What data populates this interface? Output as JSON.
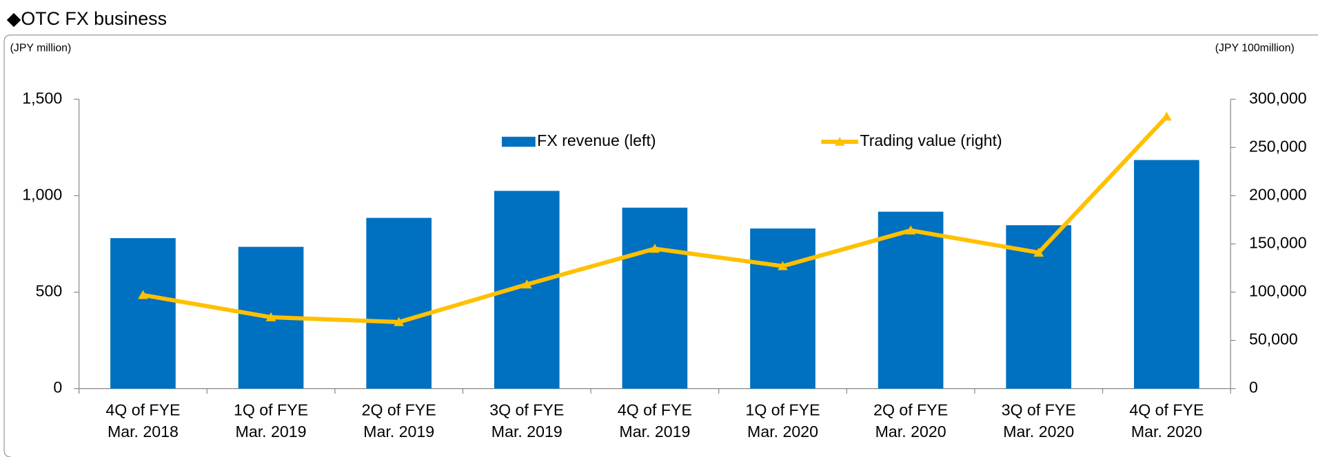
{
  "chart_data": {
    "type": "bar_line",
    "title": "◆OTC FX business",
    "ylabel": "(JPY million)",
    "y2label": "(JPY 100million)",
    "categories": [
      [
        "4Q of FYE",
        "Mar. 2018"
      ],
      [
        "1Q of FYE",
        "Mar. 2019"
      ],
      [
        "2Q of FYE",
        "Mar. 2019"
      ],
      [
        "3Q of FYE",
        "Mar. 2019"
      ],
      [
        "4Q of FYE",
        "Mar. 2019"
      ],
      [
        "1Q of FYE",
        "Mar. 2020"
      ],
      [
        "2Q of FYE",
        "Mar. 2020"
      ],
      [
        "3Q of FYE",
        "Mar. 2020"
      ],
      [
        "4Q of FYE",
        "Mar. 2020"
      ]
    ],
    "series": [
      {
        "name": "FX revenue (left)",
        "color": "#0070c0",
        "type": "bar",
        "values": [
          780,
          735,
          885,
          1025,
          938,
          830,
          917,
          847,
          1185
        ]
      },
      {
        "name": "Trading value (right)",
        "color": "#ffc000",
        "type": "line",
        "axis": "y2",
        "values": [
          97000,
          74000,
          69000,
          108000,
          145000,
          127000,
          164000,
          141000,
          282000
        ]
      }
    ],
    "ylim": [
      0,
      1500
    ],
    "yticks": [
      0,
      {
        "value": 500,
        "label": "500"
      },
      {
        "value": 1000,
        "label": "1,000"
      },
      {
        "value": 1500,
        "label": "1,500"
      }
    ],
    "y2lim": [
      0,
      300000
    ],
    "y2ticks": [
      0,
      {
        "value": 50000,
        "label": "50,000"
      },
      {
        "value": 100000,
        "label": "100,000"
      },
      {
        "value": 150000,
        "label": "150,000"
      },
      {
        "value": 200000,
        "label": "200,000"
      },
      {
        "value": 250000,
        "label": "250,000"
      },
      {
        "value": 300000,
        "label": "300,000"
      }
    ],
    "legend": "top"
  }
}
